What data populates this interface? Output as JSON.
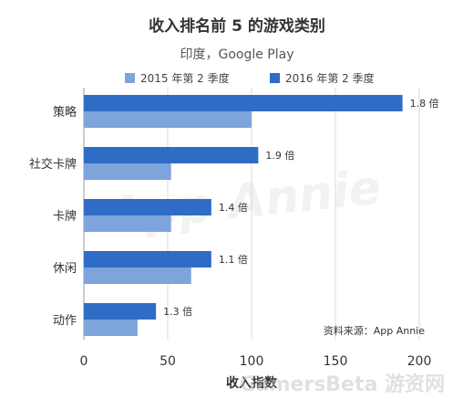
{
  "chart_data": {
    "type": "bar",
    "orientation": "horizontal",
    "title": "收入排名前 5 的游戏类别",
    "subtitle": "印度，Google Play",
    "xlabel": "收入指数",
    "ylabel": "",
    "xlim": [
      0,
      200
    ],
    "xticks": [
      0,
      50,
      100,
      150,
      200
    ],
    "grid": true,
    "legend_position": "top",
    "categories": [
      "策略",
      "社交卡牌",
      "卡牌",
      "休闲",
      "动作"
    ],
    "series": [
      {
        "name": "2015 年第 2 季度",
        "color": "#7ea4dc",
        "values": [
          100,
          52,
          52,
          64,
          32
        ]
      },
      {
        "name": "2016 年第 2 季度",
        "color": "#2f6cc5",
        "values": [
          190,
          104,
          76,
          76,
          43
        ]
      }
    ],
    "data_labels": [
      "1.8 倍",
      "1.9 倍",
      "1.4 倍",
      "1.1 倍",
      "1.3 倍"
    ],
    "source": "资料来源：App Annie",
    "watermark": "App Annie",
    "footer_watermark": "GamersBeta 游资网"
  }
}
